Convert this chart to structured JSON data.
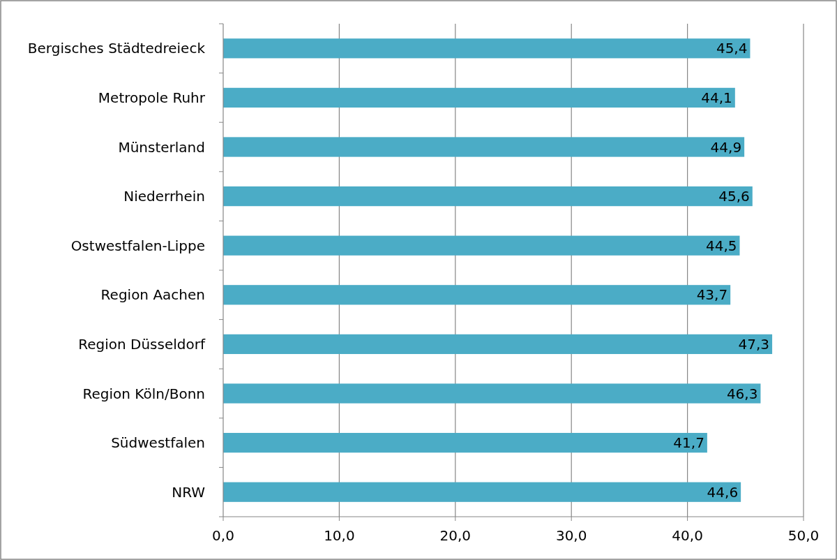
{
  "chart_data": {
    "type": "bar",
    "orientation": "horizontal",
    "categories": [
      "Bergisches Städtedreieck",
      "Metropole Ruhr",
      "Münsterland",
      "Niederrhein",
      "Ostwestfalen-Lippe",
      "Region Aachen",
      "Region Düsseldorf",
      "Region Köln/Bonn",
      "Südwestfalen",
      "NRW"
    ],
    "values": [
      45.4,
      44.1,
      44.9,
      45.6,
      44.5,
      43.7,
      47.3,
      46.3,
      41.7,
      44.6
    ],
    "value_labels": [
      "45,4",
      "44,1",
      "44,9",
      "45,6",
      "44,5",
      "43,7",
      "47,3",
      "46,3",
      "41,7",
      "44,6"
    ],
    "color": "#4bacc6",
    "xlim": [
      0,
      50
    ],
    "xticks": [
      {
        "value": 0,
        "label": "0,0"
      },
      {
        "value": 10,
        "label": "10,0"
      },
      {
        "value": 20,
        "label": "20,0"
      },
      {
        "value": 30,
        "label": "30,0"
      },
      {
        "value": 40,
        "label": "40,0"
      },
      {
        "value": 50,
        "label": "50,0"
      }
    ],
    "grid": "x"
  }
}
